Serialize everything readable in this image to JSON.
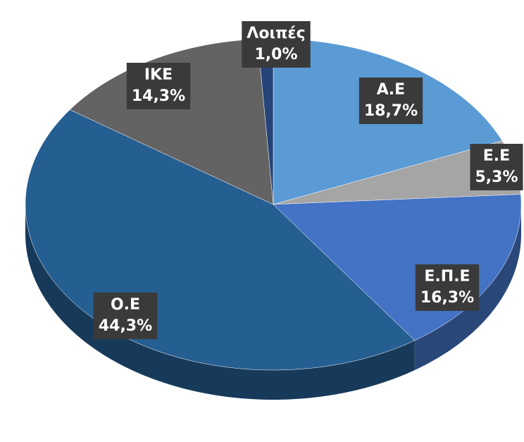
{
  "chart_data": {
    "type": "pie",
    "categories": [
      "Α.Ε",
      "Ε.Ε",
      "Ε.Π.Ε",
      "Ο.Ε",
      "ΙΚΕ",
      "Λοιπές"
    ],
    "values": [
      18.7,
      5.3,
      16.3,
      44.3,
      14.3,
      1.0
    ],
    "value_labels": [
      "18,7%",
      "5,3%",
      "16,3%",
      "44,3%",
      "14,3%",
      "1,0%"
    ],
    "colors": [
      "#5b9bd5",
      "#a5a5a5",
      "#4472c4",
      "#255e91",
      "#636363",
      "#264478"
    ]
  }
}
